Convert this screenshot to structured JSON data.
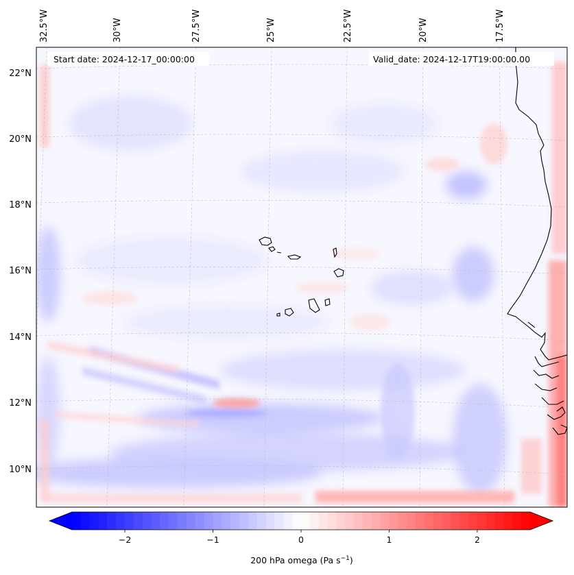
{
  "map": {
    "start_date": "Start date: 2024-12-17_00:00:00",
    "valid_date": "Valid_date: 2024-12-17T19:00:00.00",
    "lon_labels": [
      "32.5°W",
      "30°W",
      "27.5°W",
      "25°W",
      "22.5°W",
      "20°W",
      "17.5°W"
    ],
    "lat_labels": [
      "22°N",
      "20°N",
      "18°N",
      "16°N",
      "14°N",
      "12°N",
      "10°N"
    ],
    "extent": {
      "lon_min": -33.0,
      "lon_max": -15.2,
      "lat_min": 8.9,
      "lat_max": 22.8
    }
  },
  "colorbar": {
    "label_main": "200 hPa omega (Pa s",
    "label_sup": "−1",
    "label_close": ")",
    "ticks": [
      "−2",
      "−1",
      "0",
      "1",
      "2"
    ],
    "tick_values": [
      -2,
      -1,
      0,
      1,
      2
    ],
    "range": [
      -2.6,
      2.6
    ],
    "colormap": "bwr",
    "colors": {
      "negative": "#0000ff",
      "zero": "#ffffff",
      "positive": "#ff0000"
    }
  }
}
